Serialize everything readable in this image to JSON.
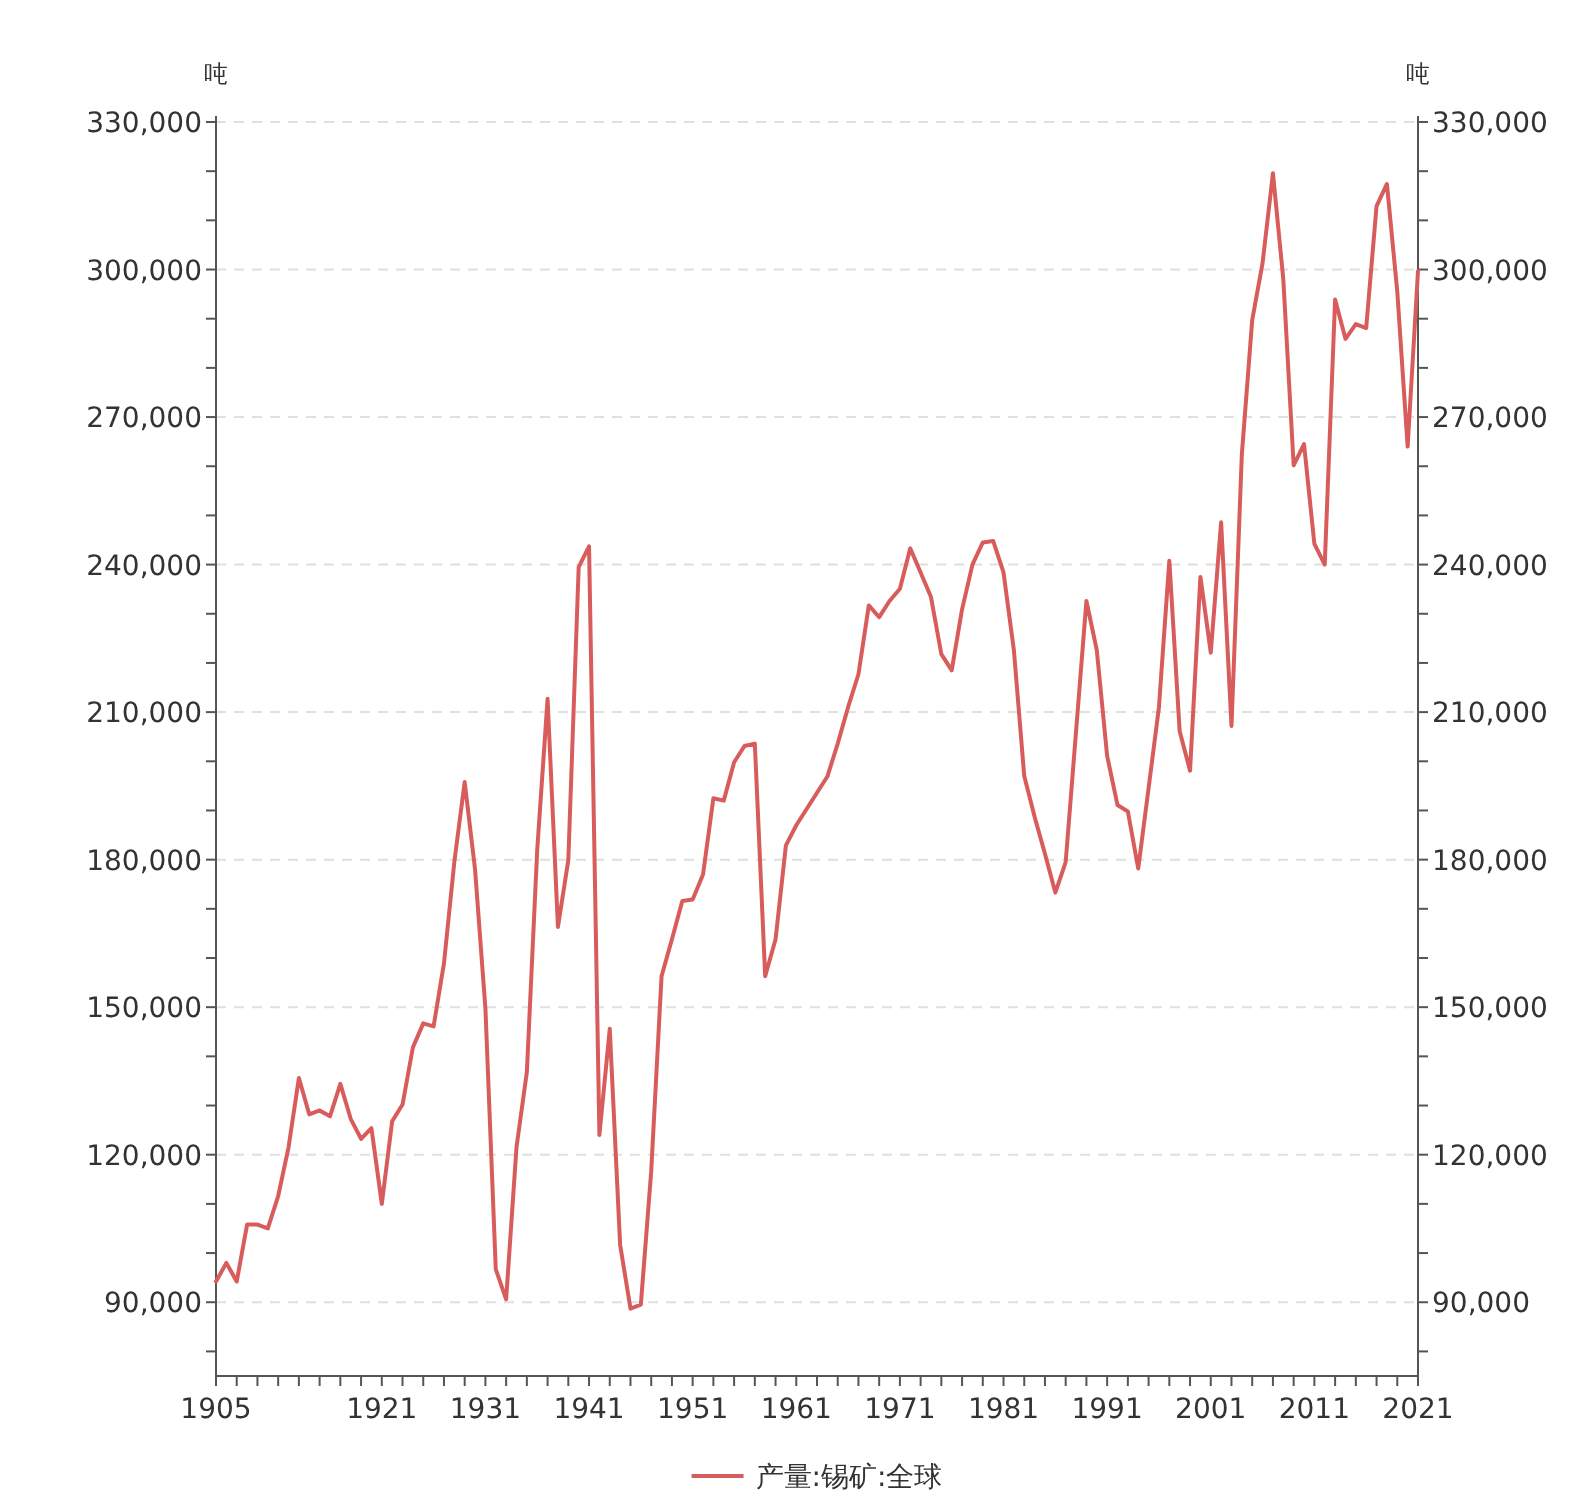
{
  "chart_data": {
    "type": "line",
    "ylabel": "吨",
    "y2label": "吨",
    "legend": "bottom",
    "grid": "y",
    "marker": "none",
    "line_style": "solid",
    "x": [
      1905,
      1906,
      1907,
      1908,
      1909,
      1910,
      1911,
      1912,
      1913,
      1914,
      1915,
      1916,
      1917,
      1918,
      1919,
      1920,
      1921,
      1922,
      1923,
      1924,
      1925,
      1926,
      1927,
      1928,
      1929,
      1930,
      1931,
      1932,
      1933,
      1934,
      1935,
      1936,
      1937,
      1938,
      1939,
      1940,
      1941,
      1942,
      1943,
      1944,
      1945,
      1946,
      1947,
      1948,
      1949,
      1950,
      1951,
      1952,
      1953,
      1954,
      1955,
      1956,
      1957,
      1958,
      1959,
      1960,
      1961,
      1962,
      1963,
      1964,
      1965,
      1966,
      1967,
      1968,
      1969,
      1970,
      1971,
      1972,
      1973,
      1974,
      1975,
      1976,
      1977,
      1978,
      1979,
      1980,
      1981,
      1982,
      1983,
      1984,
      1985,
      1986,
      1987,
      1988,
      1989,
      1990,
      1991,
      1992,
      1993,
      1994,
      1995,
      1996,
      1997,
      1998,
      1999,
      2000,
      2001,
      2002,
      2003,
      2004,
      2005,
      2006,
      2007,
      2008,
      2009,
      2010,
      2011,
      2012,
      2013,
      2014,
      2015,
      2016,
      2017,
      2018,
      2019,
      2020,
      2021
    ],
    "series": [
      {
        "name": "产量:锡矿:全球",
        "color": "#d95c5c",
        "values": [
          94200,
          98000,
          94200,
          105800,
          105800,
          105000,
          111600,
          121500,
          135600,
          128200,
          129000,
          127800,
          134400,
          127300,
          123200,
          125400,
          110000,
          126800,
          130200,
          141800,
          146700,
          146100,
          158900,
          179500,
          195800,
          178000,
          149700,
          96700,
          90600,
          121500,
          136800,
          182000,
          212700,
          166300,
          179900,
          239500,
          243700,
          124000,
          145600,
          101700,
          88700,
          89500,
          116600,
          156300,
          163800,
          171600,
          171900,
          177000,
          192500,
          192000,
          199800,
          203100,
          203600,
          156300,
          163800,
          182900,
          187000,
          190300,
          193600,
          196900,
          203600,
          211000,
          217700,
          231700,
          229300,
          232600,
          235100,
          243300,
          238400,
          233400,
          221800,
          218500,
          230900,
          240000,
          244500,
          244800,
          238400,
          222600,
          197000,
          188700,
          181200,
          173300,
          179500,
          206100,
          232600,
          222600,
          201100,
          191100,
          189800,
          178200,
          194500,
          211000,
          240800,
          206100,
          198100,
          237500,
          222100,
          248600,
          207200,
          262400,
          289700,
          301300,
          319600,
          298000,
          260200,
          264500,
          244200,
          240000,
          293900,
          285900,
          288900,
          288100,
          312900,
          317400,
          295500,
          264000,
          299700
        ]
      }
    ],
    "xlim": [
      1905,
      2021
    ],
    "xticks": [
      1905,
      {
        "value": 1907,
        "label": null
      },
      {
        "value": 1909,
        "label": null
      },
      {
        "value": 1911,
        "label": null
      },
      {
        "value": 1913,
        "label": null
      },
      {
        "value": 1915,
        "label": null
      },
      {
        "value": 1917,
        "label": null
      },
      {
        "value": 1919,
        "label": null
      },
      1921,
      {
        "value": 1923,
        "label": null
      },
      {
        "value": 1925,
        "label": null
      },
      {
        "value": 1927,
        "label": null
      },
      {
        "value": 1929,
        "label": null
      },
      1931,
      {
        "value": 1933,
        "label": null
      },
      {
        "value": 1935,
        "label": null
      },
      {
        "value": 1937,
        "label": null
      },
      {
        "value": 1939,
        "label": null
      },
      1941,
      {
        "value": 1943,
        "label": null
      },
      {
        "value": 1945,
        "label": null
      },
      {
        "value": 1947,
        "label": null
      },
      {
        "value": 1949,
        "label": null
      },
      1951,
      {
        "value": 1953,
        "label": null
      },
      {
        "value": 1955,
        "label": null
      },
      {
        "value": 1957,
        "label": null
      },
      {
        "value": 1959,
        "label": null
      },
      1961,
      {
        "value": 1963,
        "label": null
      },
      {
        "value": 1965,
        "label": null
      },
      {
        "value": 1967,
        "label": null
      },
      {
        "value": 1969,
        "label": null
      },
      1971,
      {
        "value": 1973,
        "label": null
      },
      {
        "value": 1975,
        "label": null
      },
      {
        "value": 1977,
        "label": null
      },
      {
        "value": 1979,
        "label": null
      },
      1981,
      {
        "value": 1983,
        "label": null
      },
      {
        "value": 1985,
        "label": null
      },
      {
        "value": 1987,
        "label": null
      },
      {
        "value": 1989,
        "label": null
      },
      1991,
      {
        "value": 1993,
        "label": null
      },
      {
        "value": 1995,
        "label": null
      },
      {
        "value": 1997,
        "label": null
      },
      {
        "value": 1999,
        "label": null
      },
      2001,
      {
        "value": 2003,
        "label": null
      },
      {
        "value": 2005,
        "label": null
      },
      {
        "value": 2007,
        "label": null
      },
      {
        "value": 2009,
        "label": null
      },
      2011,
      {
        "value": 2013,
        "label": null
      },
      {
        "value": 2015,
        "label": null
      },
      {
        "value": 2017,
        "label": null
      },
      {
        "value": 2019,
        "label": null
      },
      2021
    ],
    "ylim": [
      75000,
      330000
    ],
    "yticks": [
      {
        "value": 80000,
        "label": null
      },
      {
        "value": 90000,
        "label": "90,000"
      },
      {
        "value": 100000,
        "label": null
      },
      {
        "value": 110000,
        "label": null
      },
      {
        "value": 120000,
        "label": "120,000"
      },
      {
        "value": 130000,
        "label": null
      },
      {
        "value": 140000,
        "label": null
      },
      {
        "value": 150000,
        "label": "150,000"
      },
      {
        "value": 160000,
        "label": null
      },
      {
        "value": 170000,
        "label": null
      },
      {
        "value": 180000,
        "label": "180,000"
      },
      {
        "value": 190000,
        "label": null
      },
      {
        "value": 200000,
        "label": null
      },
      {
        "value": 210000,
        "label": "210,000"
      },
      {
        "value": 220000,
        "label": null
      },
      {
        "value": 230000,
        "label": null
      },
      {
        "value": 240000,
        "label": "240,000"
      },
      {
        "value": 250000,
        "label": null
      },
      {
        "value": 260000,
        "label": null
      },
      {
        "value": 270000,
        "label": "270,000"
      },
      {
        "value": 280000,
        "label": null
      },
      {
        "value": 290000,
        "label": null
      },
      {
        "value": 300000,
        "label": "300,000"
      },
      {
        "value": 310000,
        "label": null
      },
      {
        "value": 320000,
        "label": null
      },
      {
        "value": 330000,
        "label": "330,000"
      }
    ],
    "y2lim": [
      75000,
      330000
    ],
    "y2ticks": [
      {
        "value": 80000,
        "label": null
      },
      {
        "value": 90000,
        "label": "90,000"
      },
      {
        "value": 100000,
        "label": null
      },
      {
        "value": 110000,
        "label": null
      },
      {
        "value": 120000,
        "label": "120,000"
      },
      {
        "value": 130000,
        "label": null
      },
      {
        "value": 140000,
        "label": null
      },
      {
        "value": 150000,
        "label": "150,000"
      },
      {
        "value": 160000,
        "label": null
      },
      {
        "value": 170000,
        "label": null
      },
      {
        "value": 180000,
        "label": "180,000"
      },
      {
        "value": 190000,
        "label": null
      },
      {
        "value": 200000,
        "label": null
      },
      {
        "value": 210000,
        "label": "210,000"
      },
      {
        "value": 220000,
        "label": null
      },
      {
        "value": 230000,
        "label": null
      },
      {
        "value": 240000,
        "label": "240,000"
      },
      {
        "value": 250000,
        "label": null
      },
      {
        "value": 260000,
        "label": null
      },
      {
        "value": 270000,
        "label": "270,000"
      },
      {
        "value": 280000,
        "label": null
      },
      {
        "value": 290000,
        "label": null
      },
      {
        "value": 300000,
        "label": "300,000"
      },
      {
        "value": 310000,
        "label": null
      },
      {
        "value": 320000,
        "label": null
      },
      {
        "value": 330000,
        "label": "330,000"
      }
    ]
  }
}
